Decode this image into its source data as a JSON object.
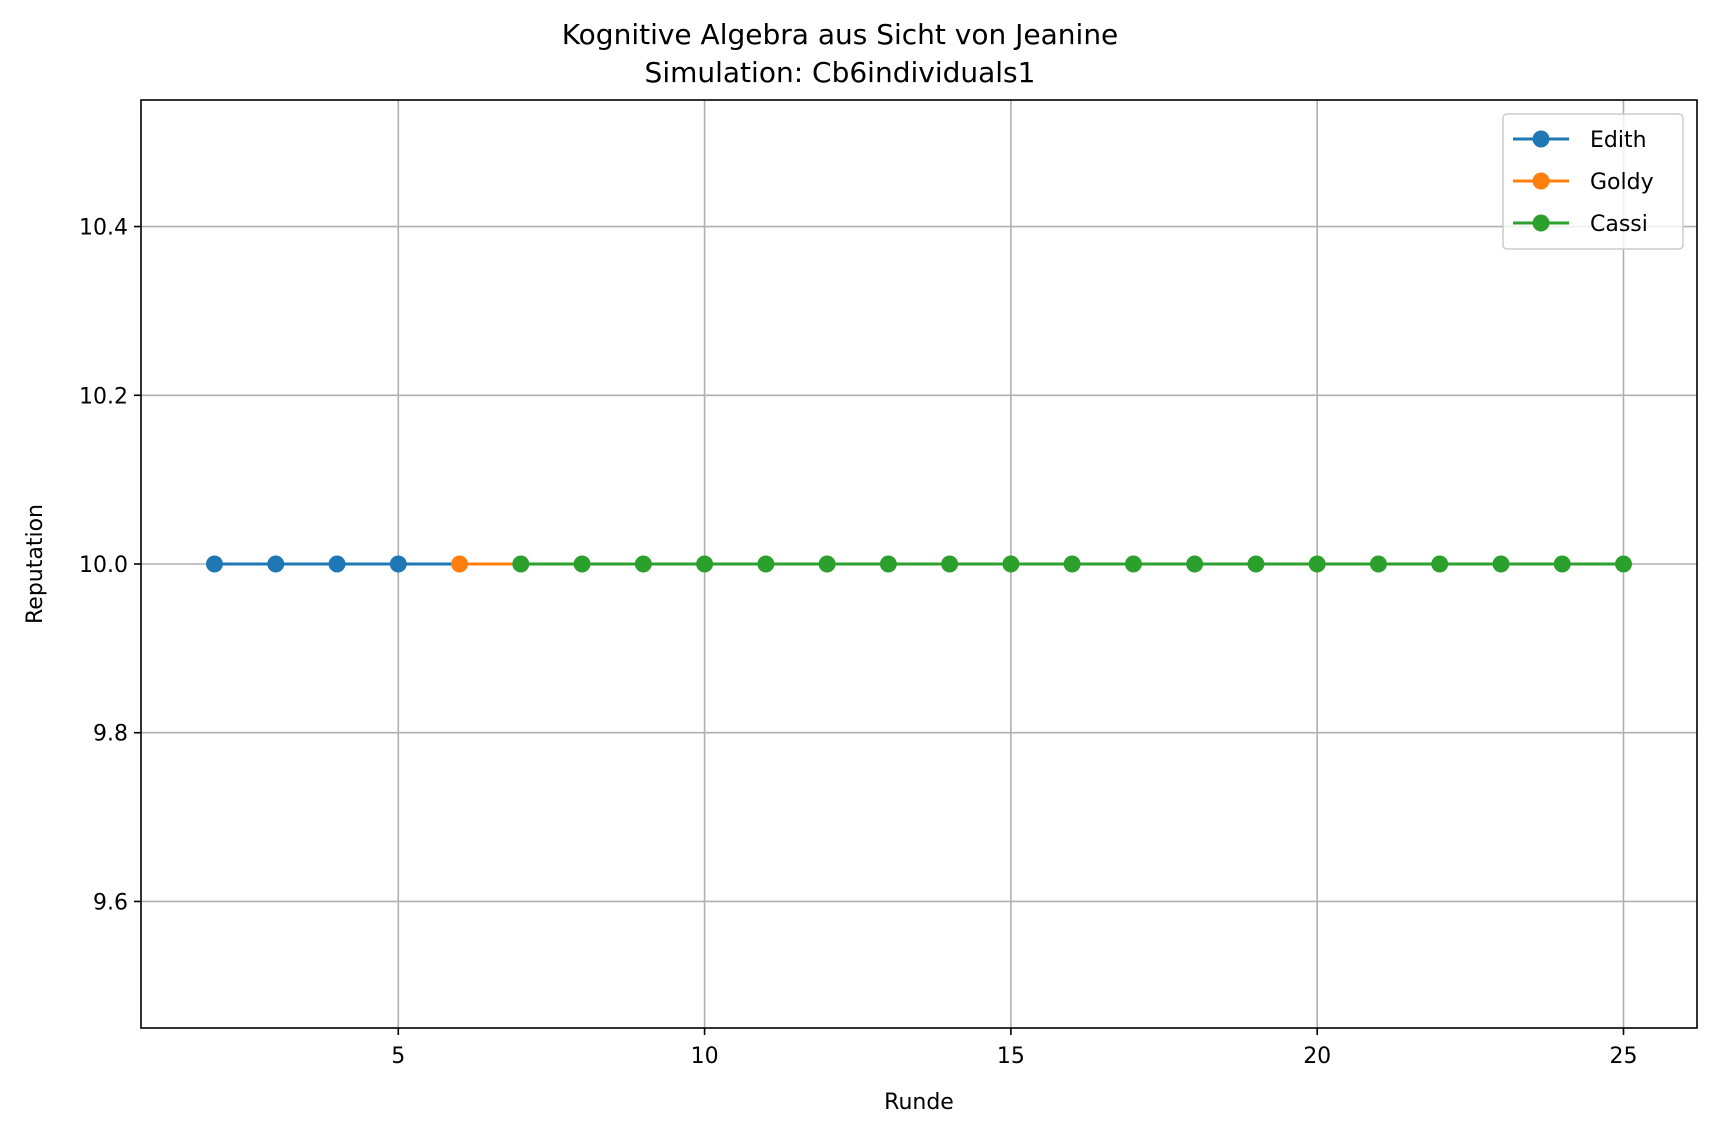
{
  "chart_data": {
    "type": "line",
    "title": "Kognitive Algebra aus Sicht von Jeanine",
    "subtitle": "Simulation: Cb6individuals1",
    "xlabel": "Runde",
    "ylabel": "Reputation",
    "xlim": [
      0.8,
      26.2
    ],
    "ylim": [
      9.45,
      10.55
    ],
    "xticks": [
      5,
      10,
      15,
      20,
      25
    ],
    "yticks": [
      9.6,
      9.8,
      10.0,
      10.2,
      10.4
    ],
    "xtick_labels": [
      "5",
      "10",
      "15",
      "20",
      "25"
    ],
    "ytick_labels": [
      "9.6",
      "9.8",
      "10.0",
      "10.2",
      "10.4"
    ],
    "grid": true,
    "legend_position": "top-right",
    "series": [
      {
        "name": "Edith",
        "color": "#1f77b4",
        "x": [
          2,
          3,
          4,
          5,
          6
        ],
        "y": [
          10.0,
          10.0,
          10.0,
          10.0,
          10.0
        ],
        "marker_x": [
          2,
          3,
          4,
          5
        ]
      },
      {
        "name": "Goldy",
        "color": "#ff7f0e",
        "x": [
          6,
          7
        ],
        "y": [
          10.0,
          10.0
        ],
        "marker_x": [
          6
        ]
      },
      {
        "name": "Cassi",
        "color": "#2ca02c",
        "x": [
          7,
          8,
          9,
          10,
          11,
          12,
          13,
          14,
          15,
          16,
          17,
          18,
          19,
          20,
          21,
          22,
          23,
          24,
          25
        ],
        "y": [
          10.0,
          10.0,
          10.0,
          10.0,
          10.0,
          10.0,
          10.0,
          10.0,
          10.0,
          10.0,
          10.0,
          10.0,
          10.0,
          10.0,
          10.0,
          10.0,
          10.0,
          10.0,
          10.0
        ],
        "marker_x": [
          7,
          8,
          9,
          10,
          11,
          12,
          13,
          14,
          15,
          16,
          17,
          18,
          19,
          20,
          21,
          22,
          23,
          24,
          25
        ]
      }
    ]
  }
}
